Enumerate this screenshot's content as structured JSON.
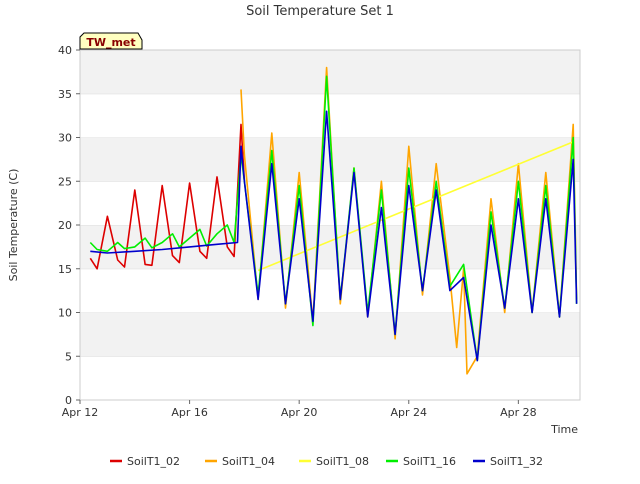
{
  "chart_data": {
    "type": "line",
    "title": "Soil Temperature Set 1",
    "xlabel": "Time",
    "ylabel": "Soil Temperature (C)",
    "station_badge": "TW_met",
    "xlim": [
      "2023-04-12",
      "2023-04-30T06:00"
    ],
    "ylim": [
      0,
      40
    ],
    "yticks": [
      0,
      5,
      10,
      15,
      20,
      25,
      30,
      35,
      40
    ],
    "xticks": [
      {
        "date": "2023-04-12",
        "label": "Apr 12"
      },
      {
        "date": "2023-04-16",
        "label": "Apr 16"
      },
      {
        "date": "2023-04-20",
        "label": "Apr 20"
      },
      {
        "date": "2023-04-24",
        "label": "Apr 24"
      },
      {
        "date": "2023-04-28",
        "label": "Apr 28"
      }
    ],
    "grid": "horizontal-bands",
    "legend_position": "bottom",
    "series": [
      {
        "name": "SoilT1_02",
        "color": "#dd0000",
        "x": [
          "2023-04-12T09:00",
          "2023-04-12T15:00",
          "2023-04-13T00:00",
          "2023-04-13T09:00",
          "2023-04-13T15:00",
          "2023-04-14T00:00",
          "2023-04-14T09:00",
          "2023-04-14T15:00",
          "2023-04-15T00:00",
          "2023-04-15T09:00",
          "2023-04-15T15:00",
          "2023-04-16T00:00",
          "2023-04-16T09:00",
          "2023-04-16T15:00",
          "2023-04-17T00:00",
          "2023-04-17T09:00",
          "2023-04-17T15:00",
          "2023-04-17T21:00",
          "2023-04-18T00:00"
        ],
        "y": [
          16.2,
          15.0,
          21.0,
          16.0,
          15.2,
          24.0,
          15.5,
          15.4,
          24.5,
          16.5,
          15.7,
          24.8,
          17.0,
          16.2,
          25.5,
          17.5,
          16.4,
          31.5,
          25.0
        ]
      },
      {
        "name": "SoilT1_04",
        "color": "#ffa500",
        "x": [
          "2023-04-17T21:00",
          "2023-04-18T00:00",
          "2023-04-18T12:00",
          "2023-04-19T00:00",
          "2023-04-19T12:00",
          "2023-04-20T00:00",
          "2023-04-20T12:00",
          "2023-04-21T00:00",
          "2023-04-21T12:00",
          "2023-04-22T00:00",
          "2023-04-22T12:00",
          "2023-04-23T00:00",
          "2023-04-23T12:00",
          "2023-04-24T00:00",
          "2023-04-24T12:00",
          "2023-04-25T00:00",
          "2023-04-25T12:00",
          "2023-04-25T18:00",
          "2023-04-26T00:00",
          "2023-04-26T03:00",
          "2023-04-26T12:00",
          "2023-04-27T00:00",
          "2023-04-27T12:00",
          "2023-04-28T00:00",
          "2023-04-28T12:00",
          "2023-04-29T00:00",
          "2023-04-29T12:00",
          "2023-04-30T00:00",
          "2023-04-30T03:00"
        ],
        "y": [
          35.5,
          28.0,
          11.5,
          30.5,
          10.5,
          26.0,
          9.0,
          38.0,
          11.0,
          26.5,
          9.5,
          25.0,
          7.0,
          29.0,
          12.0,
          27.0,
          14.0,
          6.0,
          15.0,
          3.0,
          5.0,
          23.0,
          10.0,
          27.0,
          10.0,
          26.0,
          9.5,
          31.5,
          11.5
        ]
      },
      {
        "name": "SoilT1_08",
        "color": "#ffff33",
        "x": [
          "2023-04-18T12:00",
          "2023-04-30T00:00"
        ],
        "y": [
          14.8,
          29.5
        ]
      },
      {
        "name": "SoilT1_16",
        "color": "#00ee00",
        "x": [
          "2023-04-12T09:00",
          "2023-04-12T15:00",
          "2023-04-13T00:00",
          "2023-04-13T09:00",
          "2023-04-13T15:00",
          "2023-04-14T00:00",
          "2023-04-14T09:00",
          "2023-04-14T15:00",
          "2023-04-15T00:00",
          "2023-04-15T09:00",
          "2023-04-15T15:00",
          "2023-04-16T00:00",
          "2023-04-16T09:00",
          "2023-04-16T15:00",
          "2023-04-17T00:00",
          "2023-04-17T09:00",
          "2023-04-17T15:00",
          "2023-04-17T21:00",
          "2023-04-18T00:00",
          "2023-04-18T12:00",
          "2023-04-19T00:00",
          "2023-04-19T12:00",
          "2023-04-20T00:00",
          "2023-04-20T12:00",
          "2023-04-21T00:00",
          "2023-04-21T12:00",
          "2023-04-22T00:00",
          "2023-04-22T12:00",
          "2023-04-23T00:00",
          "2023-04-23T12:00",
          "2023-04-24T00:00",
          "2023-04-24T12:00",
          "2023-04-25T00:00",
          "2023-04-25T12:00",
          "2023-04-26T00:00",
          "2023-04-26T12:00",
          "2023-04-27T00:00",
          "2023-04-27T12:00",
          "2023-04-28T00:00",
          "2023-04-28T12:00",
          "2023-04-29T00:00",
          "2023-04-29T12:00",
          "2023-04-30T00:00",
          "2023-04-30T03:00"
        ],
        "y": [
          18.0,
          17.2,
          17.0,
          18.0,
          17.3,
          17.5,
          18.5,
          17.4,
          18.0,
          19.0,
          17.5,
          18.5,
          19.5,
          17.6,
          19.0,
          20.0,
          18.0,
          28.0,
          25.0,
          12.0,
          28.5,
          11.0,
          24.5,
          8.5,
          37.0,
          11.5,
          26.5,
          10.0,
          24.0,
          7.5,
          26.5,
          12.5,
          25.0,
          13.0,
          15.5,
          4.5,
          21.5,
          10.5,
          25.0,
          10.0,
          24.5,
          9.5,
          30.0,
          11.0
        ]
      },
      {
        "name": "SoilT1_32",
        "color": "#0000cc",
        "x": [
          "2023-04-12T09:00",
          "2023-04-13T00:00",
          "2023-04-14T00:00",
          "2023-04-15T00:00",
          "2023-04-16T00:00",
          "2023-04-17T00:00",
          "2023-04-17T18:00",
          "2023-04-17T21:00",
          "2023-04-18T00:00",
          "2023-04-18T12:00",
          "2023-04-19T00:00",
          "2023-04-19T12:00",
          "2023-04-20T00:00",
          "2023-04-20T12:00",
          "2023-04-21T00:00",
          "2023-04-21T12:00",
          "2023-04-22T00:00",
          "2023-04-22T12:00",
          "2023-04-23T00:00",
          "2023-04-23T12:00",
          "2023-04-24T00:00",
          "2023-04-24T12:00",
          "2023-04-25T00:00",
          "2023-04-25T12:00",
          "2023-04-26T00:00",
          "2023-04-26T12:00",
          "2023-04-27T00:00",
          "2023-04-27T12:00",
          "2023-04-28T00:00",
          "2023-04-28T12:00",
          "2023-04-29T00:00",
          "2023-04-29T12:00",
          "2023-04-30T00:00",
          "2023-04-30T03:00"
        ],
        "y": [
          17.0,
          16.8,
          17.0,
          17.2,
          17.5,
          17.8,
          18.0,
          29.0,
          25.0,
          11.5,
          27.0,
          11.0,
          23.0,
          9.0,
          33.0,
          11.5,
          26.0,
          9.5,
          22.0,
          7.5,
          24.5,
          12.5,
          24.0,
          12.5,
          14.0,
          4.5,
          20.0,
          10.5,
          23.0,
          10.0,
          23.0,
          9.5,
          27.5,
          11.0
        ]
      }
    ]
  }
}
